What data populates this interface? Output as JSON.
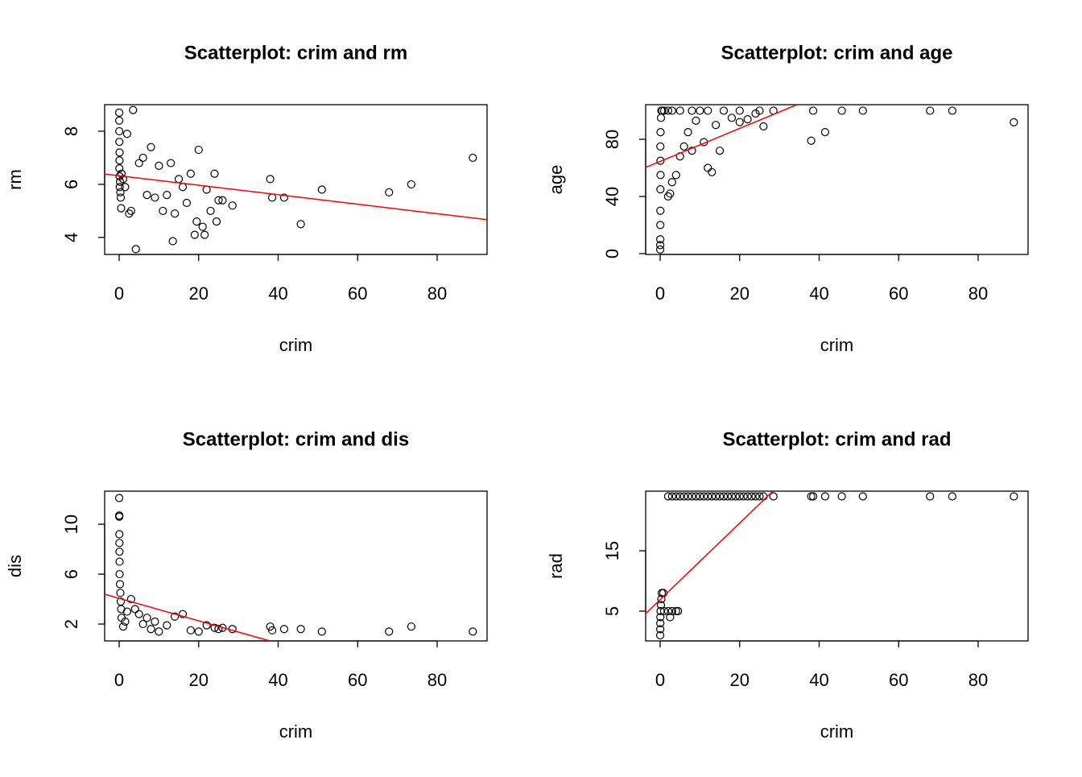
{
  "chart_data": [
    {
      "type": "scatter",
      "title": "Scatterplot: crim and rm",
      "xlabel": "crim",
      "ylabel": "rm",
      "x": [
        0.01,
        0.02,
        0.03,
        0.05,
        0.1,
        0.08,
        0.05,
        0.1,
        0.2,
        0.15,
        0.3,
        0.4,
        0.5,
        0.6,
        1,
        1.5,
        2,
        2.5,
        3,
        3.5,
        4.2,
        5,
        6,
        7,
        8,
        9,
        10,
        11,
        12,
        13,
        13.5,
        14,
        15,
        16,
        17,
        18,
        19,
        19.5,
        20,
        21,
        21.5,
        22,
        23,
        24,
        24.5,
        25,
        26,
        28.5,
        38,
        38.5,
        41.5,
        45.7,
        51,
        67.9,
        73.5,
        88.98
      ],
      "y": [
        8.7,
        8.4,
        8.0,
        7.6,
        7.2,
        6.9,
        6.6,
        6.3,
        6.1,
        5.9,
        5.7,
        5.5,
        5.1,
        6.4,
        6.2,
        5.9,
        7.9,
        4.9,
        5.0,
        8.8,
        3.56,
        6.8,
        7.0,
        5.6,
        7.4,
        5.5,
        6.7,
        5.0,
        5.6,
        6.8,
        3.86,
        4.9,
        6.2,
        5.9,
        5.3,
        6.4,
        4.1,
        4.6,
        7.3,
        4.4,
        4.1,
        5.8,
        5.0,
        6.4,
        4.6,
        5.4,
        5.4,
        5.2,
        6.2,
        5.5,
        5.5,
        4.5,
        5.8,
        5.7,
        6.0,
        7.0
      ],
      "color": "#000000",
      "fit": {
        "color": "#ff0000",
        "x": [
          -3.65,
          92.56
        ],
        "y": [
          6.39,
          4.67
        ]
      },
      "xlim": [
        -3.65,
        92.56
      ],
      "ylim": [
        3.36,
        9.0
      ],
      "xticks": [
        0,
        20,
        40,
        60,
        80
      ],
      "yticks": [
        4,
        6,
        8
      ]
    },
    {
      "type": "scatter",
      "title": "Scatterplot: crim and age",
      "xlabel": "crim",
      "ylabel": "age",
      "x": [
        0.01,
        0.02,
        0.03,
        0.04,
        0.05,
        0.06,
        0.1,
        0.08,
        0.05,
        0.1,
        0.2,
        0.3,
        0.5,
        1,
        2,
        3,
        2,
        2.5,
        3,
        4,
        5,
        6,
        7,
        8,
        9,
        10,
        11,
        12,
        13,
        14,
        15,
        16,
        18,
        20,
        22,
        24,
        25,
        26,
        28.5,
        38,
        38.5,
        41.5,
        45.7,
        51,
        67.9,
        73.5,
        88.98,
        5,
        8,
        12,
        20
      ],
      "y": [
        2.9,
        6,
        10,
        20,
        30,
        45,
        55,
        65,
        75,
        85,
        95,
        100,
        100,
        100,
        100,
        100,
        40,
        42,
        50,
        55,
        68,
        75,
        85,
        72,
        93,
        100,
        78,
        60,
        57,
        90,
        72,
        100,
        95,
        92,
        94,
        98,
        100,
        89,
        100,
        79,
        100,
        85,
        100,
        100,
        100,
        100,
        91.9,
        100,
        100,
        100,
        100
      ],
      "color": "#000000",
      "fit": {
        "color": "#ff0000",
        "x": [
          -3.65,
          34.4
        ],
        "y": [
          60.3,
          104.2
        ]
      },
      "xlim": [
        -3.65,
        92.56
      ],
      "ylim": [
        -0.56,
        104.2
      ],
      "xticks": [
        0,
        20,
        40,
        60,
        80
      ],
      "yticks": [
        0,
        40,
        80
      ]
    },
    {
      "type": "scatter",
      "title": "Scatterplot: crim and dis",
      "xlabel": "crim",
      "ylabel": "dis",
      "x": [
        0.01,
        0.02,
        0.03,
        0.05,
        0.06,
        0.08,
        0.1,
        0.1,
        0.2,
        0.3,
        0.4,
        0.5,
        0.6,
        1,
        1.5,
        2,
        3,
        4,
        5,
        6,
        7,
        8,
        9,
        10,
        12,
        14,
        16,
        18,
        20,
        22,
        24,
        25,
        26,
        28.5,
        38,
        38.5,
        41.5,
        45.7,
        51,
        67.9,
        73.5,
        88.98
      ],
      "y": [
        12.1,
        10.7,
        10.6,
        9.2,
        8.5,
        7.8,
        7.0,
        6.0,
        5.2,
        4.5,
        3.8,
        3.2,
        2.5,
        1.8,
        2.2,
        3.0,
        4.0,
        3.2,
        2.8,
        2.0,
        2.5,
        1.6,
        2.2,
        1.4,
        1.9,
        2.6,
        2.8,
        1.5,
        1.4,
        1.9,
        1.7,
        1.6,
        1.7,
        1.6,
        1.8,
        1.5,
        1.6,
        1.6,
        1.4,
        1.4,
        1.8,
        1.4
      ],
      "color": "#000000",
      "fit": {
        "color": "#ff0000",
        "x": [
          -3.65,
          37.9
        ],
        "y": [
          4.39,
          0.65
        ]
      },
      "xlim": [
        -3.65,
        92.56
      ],
      "ylim": [
        0.65,
        12.65
      ],
      "xticks": [
        0,
        20,
        40,
        60,
        80
      ],
      "yticks": [
        2,
        6,
        10
      ]
    },
    {
      "type": "scatter",
      "title": "Scatterplot: crim and rad",
      "xlabel": "crim",
      "ylabel": "rad",
      "x": [
        2,
        3,
        4,
        5,
        6,
        7,
        8,
        9,
        10,
        11,
        12,
        13,
        14,
        15,
        16,
        17,
        18,
        19,
        20,
        21,
        22,
        23,
        24,
        25,
        26,
        28.5,
        38,
        38.5,
        41.5,
        45.7,
        51,
        67.9,
        73.5,
        88.98,
        0.01,
        0.02,
        0.03,
        0.05,
        0.1,
        0.2,
        0.3,
        0.4,
        1,
        2,
        3,
        4,
        4.5,
        2.5,
        0.8
      ],
      "y": [
        24,
        24,
        24,
        24,
        24,
        24,
        24,
        24,
        24,
        24,
        24,
        24,
        24,
        24,
        24,
        24,
        24,
        24,
        24,
        24,
        24,
        24,
        24,
        24,
        24,
        24,
        24,
        24,
        24,
        24,
        24,
        24,
        24,
        24,
        1,
        2,
        3,
        4,
        5,
        6,
        7,
        8,
        5,
        5,
        5,
        5,
        5,
        4,
        8
      ],
      "color": "#000000",
      "fit": {
        "color": "#ff0000",
        "x": [
          -3.65,
          28.35
        ],
        "y": [
          4.6,
          24.87
        ]
      },
      "xlim": [
        -3.65,
        92.56
      ],
      "ylim": [
        0.07,
        24.87
      ],
      "xticks": [
        0,
        20,
        40,
        60,
        80
      ],
      "yticks": [
        5,
        15
      ]
    }
  ]
}
